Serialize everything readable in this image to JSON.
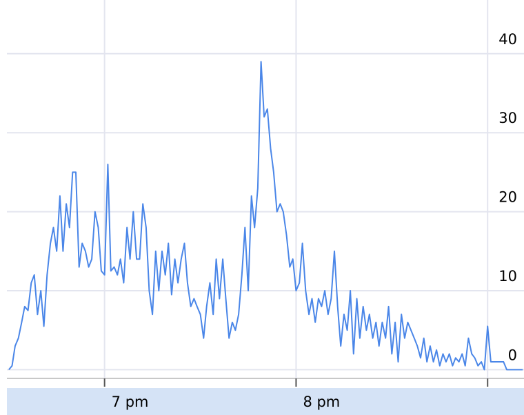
{
  "chart_data": {
    "type": "line",
    "x": [
      18.5,
      18.517,
      18.533,
      18.55,
      18.567,
      18.583,
      18.6,
      18.617,
      18.633,
      18.65,
      18.667,
      18.683,
      18.7,
      18.717,
      18.733,
      18.75,
      18.767,
      18.783,
      18.8,
      18.817,
      18.833,
      18.85,
      18.867,
      18.883,
      18.9,
      18.917,
      18.933,
      18.95,
      18.967,
      18.983,
      19.0,
      19.017,
      19.033,
      19.05,
      19.067,
      19.083,
      19.1,
      19.117,
      19.133,
      19.15,
      19.167,
      19.183,
      19.2,
      19.217,
      19.233,
      19.25,
      19.267,
      19.283,
      19.3,
      19.317,
      19.333,
      19.35,
      19.367,
      19.383,
      19.4,
      19.417,
      19.433,
      19.45,
      19.467,
      19.483,
      19.5,
      19.517,
      19.533,
      19.55,
      19.567,
      19.583,
      19.6,
      19.617,
      19.633,
      19.65,
      19.667,
      19.683,
      19.7,
      19.717,
      19.733,
      19.75,
      19.767,
      19.783,
      19.8,
      19.817,
      19.833,
      19.85,
      19.867,
      19.883,
      19.9,
      19.917,
      19.933,
      19.95,
      19.967,
      19.983,
      20.0,
      20.017,
      20.033,
      20.05,
      20.067,
      20.083,
      20.1,
      20.117,
      20.133,
      20.15,
      20.167,
      20.183,
      20.2,
      20.217,
      20.233,
      20.25,
      20.267,
      20.283,
      20.3,
      20.317,
      20.333,
      20.35,
      20.367,
      20.383,
      20.4,
      20.417,
      20.433,
      20.45,
      20.467,
      20.483,
      20.5,
      20.517,
      20.533,
      20.55,
      20.567,
      20.583,
      20.6,
      20.617,
      20.633,
      20.65,
      20.667,
      20.683,
      20.7,
      20.717,
      20.733,
      20.75,
      20.767,
      20.783,
      20.8,
      20.817,
      20.833,
      20.85,
      20.867,
      20.883,
      20.9,
      20.917,
      20.933,
      20.95,
      20.967,
      20.983,
      21.0,
      21.017,
      21.033,
      21.05,
      21.067,
      21.083,
      21.1,
      21.117,
      21.133,
      21.15,
      21.167,
      21.183
    ],
    "values": [
      0,
      0.5,
      3,
      4,
      6,
      8,
      7.5,
      11,
      12,
      7,
      10,
      5.5,
      12,
      16,
      18,
      15,
      22,
      15,
      21,
      18,
      25,
      25,
      13,
      16,
      15,
      13,
      14,
      20,
      18,
      12.5,
      12,
      26,
      12.5,
      13,
      12,
      14,
      11,
      18,
      14,
      20,
      14,
      14,
      21,
      18,
      10,
      7,
      15,
      10,
      15,
      12,
      16,
      9.5,
      14,
      11,
      14,
      16,
      11,
      8,
      9,
      8,
      7,
      4,
      8,
      11,
      7,
      14,
      9,
      14,
      9,
      4,
      6,
      5,
      7,
      12,
      18,
      10,
      22,
      18,
      23,
      39,
      32,
      33,
      28,
      25,
      20,
      21,
      20,
      17,
      13,
      14,
      10,
      11,
      16,
      10,
      7,
      9,
      6,
      9,
      8,
      10,
      7,
      9,
      15,
      8,
      3,
      7,
      5,
      10,
      2,
      9,
      4,
      8,
      5,
      7,
      4,
      6,
      3,
      6,
      4,
      8,
      2,
      6,
      1,
      7,
      4,
      6,
      5,
      4,
      3,
      1.5,
      4,
      1,
      3,
      1,
      2.5,
      0.5,
      2,
      1,
      2,
      0.5,
      1.5,
      1,
      2,
      0.5,
      4,
      2,
      1.5,
      0.5,
      1,
      0,
      5.5,
      1,
      1,
      1,
      1,
      1,
      0,
      0,
      0,
      0,
      0,
      0
    ],
    "color": "#4a86e8",
    "xlim": [
      18.49,
      21.19
    ],
    "xticks": [
      {
        "value": 19,
        "label": "7 pm"
      },
      {
        "value": 20,
        "label": "8 pm"
      }
    ],
    "xgrid": [
      19,
      20,
      21
    ],
    "ylim": [
      -1.1,
      46.8
    ],
    "yticks": [
      0,
      10,
      20,
      30,
      40
    ],
    "grid": true
  }
}
